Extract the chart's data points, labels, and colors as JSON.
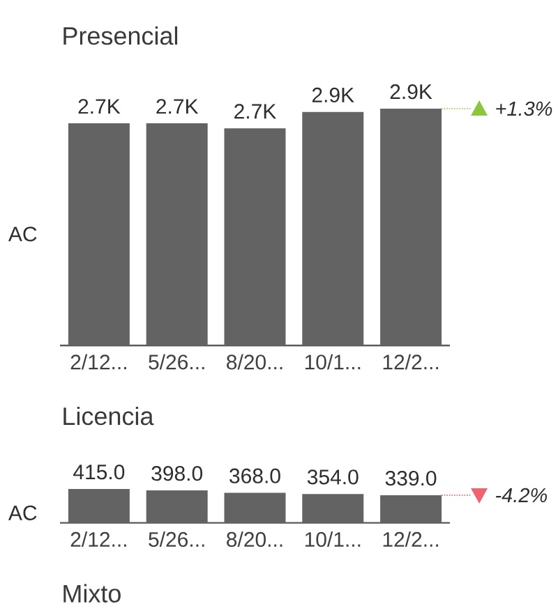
{
  "chart_data": [
    {
      "type": "bar",
      "title": "Presencial",
      "ylabel": "AC",
      "categories": [
        "2/12...",
        "5/26...",
        "8/20...",
        "10/1...",
        "12/2..."
      ],
      "values": [
        2720,
        2720,
        2660,
        2860,
        2900
      ],
      "value_labels": [
        "2.7K",
        "2.7K",
        "2.7K",
        "2.9K",
        "2.9K"
      ],
      "color": "#636363",
      "annotations": [
        "+1.3%"
      ]
    },
    {
      "type": "bar",
      "title": "Licencia",
      "ylabel": "AC",
      "categories": [
        "2/12...",
        "5/26...",
        "8/20...",
        "10/1...",
        "12/2..."
      ],
      "values": [
        415.0,
        398.0,
        368.0,
        354.0,
        339.0
      ],
      "value_labels": [
        "415.0",
        "398.0",
        "368.0",
        "354.0",
        "339.0"
      ],
      "color": "#636363",
      "annotations": [
        "-4.2%"
      ]
    },
    {
      "type": "other",
      "title": "Mixto"
    }
  ]
}
